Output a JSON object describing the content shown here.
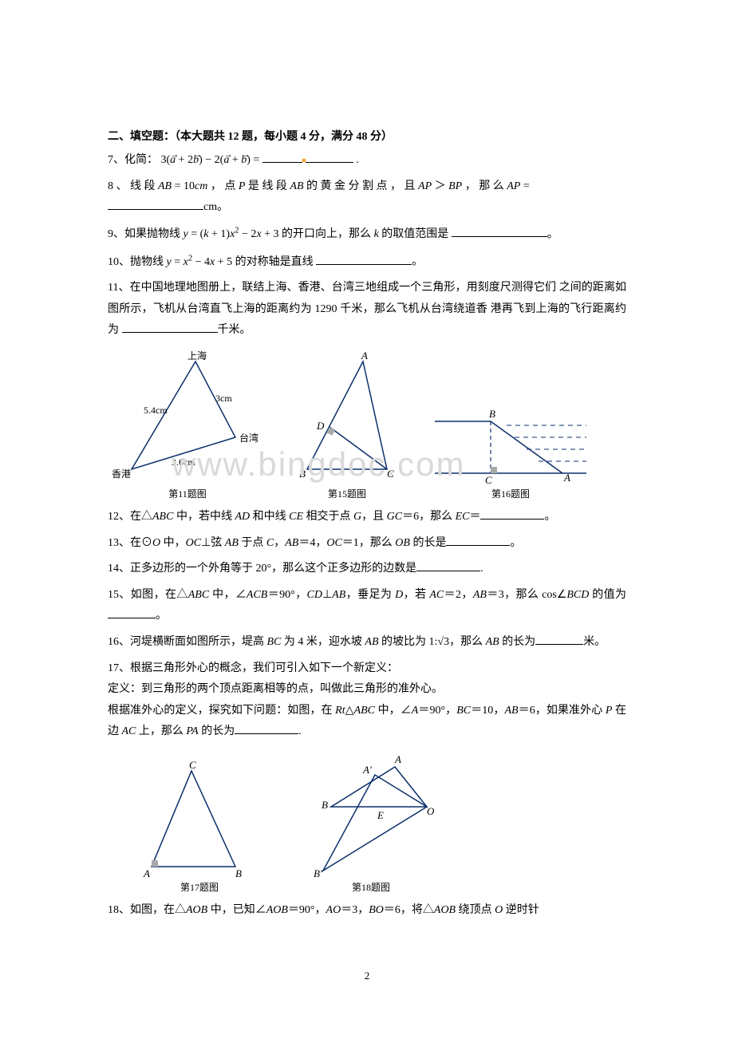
{
  "section_header": "二、填空题：（本大题共 12 题，每小题 4 分，满分 48 分）",
  "q7": {
    "prefix": "7、化简：",
    "formula_html": "3(<span class='vec'>a</span> + 2<span class='vec'>b</span>) − 2(<span class='vec'>a</span> + <span class='vec'>b</span>) = ",
    "suffix": "."
  },
  "q8": {
    "text": "8 、 线 段 <span class='italic'>AB</span> = 10<span class='italic'>cm</span> ， 点 <span class='italic'>P</span> 是 线 段 <span class='italic'>AB</span> 的 黄 金 分 割 点 ， 且 <span class='italic'>AP</span> ＞ <span class='italic'>BP</span> ， 那 么 <span class='italic'>AP</span> =",
    "unit": "cm。"
  },
  "q9": {
    "text": "9、如果抛物线 <span class='italic'>y</span> = (<span class='italic'>k</span> + 1)<span class='italic'>x</span><sup>2</sup> − 2<span class='italic'>x</span> + 3 的开口向上，那么 <span class='italic'>k</span> 的取值范围是",
    "suffix": "。"
  },
  "q10": {
    "text": "10、抛物线 <span class='italic'>y</span> = <span class='italic'>x</span><sup>2</sup> − 4<span class='italic'>x</span> + 5 的对称轴是直线",
    "suffix": "。"
  },
  "q11": {
    "line1": "11、在中国地理地图册上，联结上海、香港、台湾三地组成一个三角形，用刻度尺测得它们",
    "line2": "之间的距离如图所示，飞机从台湾直飞上海的距离约为 1290 千米，那么飞机从台湾绕道香",
    "line3": "港再飞到上海的飞行距离约为",
    "unit": "千米。"
  },
  "q12": "12、在△<span class='italic'>ABC</span> 中，若中线 <span class='italic'>AD</span> 和中线 <span class='italic'>CE</span> 相交于点 <span class='italic'>G</span>，且 <span class='italic'>GC</span>＝6，那么 <span class='italic'>EC</span>＝",
  "q13": "13、在⊙<span class='italic'>O</span> 中，<span class='italic'>OC</span>⊥弦 <span class='italic'>AB</span> 于点 <span class='italic'>C</span>，<span class='italic'>AB</span>＝4，<span class='italic'>OC</span>＝1，那么 <span class='italic'>OB</span> 的长是",
  "q14": "14、正多边形的一个外角等于 20°，那么这个正多边形的边数是",
  "q15": "15、如图，在△<span class='italic'>ABC</span> 中，∠<span class='italic'>ACB</span>＝90°，<span class='italic'>CD</span>⊥<span class='italic'>AB</span>，垂足为 <span class='italic'>D</span>，若 <span class='italic'>AC</span>＝2，<span class='italic'>AB</span>＝3，那么 cos∠<span class='italic'>BCD</span> 的值为",
  "q16": "16、河堤横断面如图所示，堤高 <span class='italic'>BC</span> 为 4 米，迎水坡 <span class='italic'>AB</span> 的坡比为 1:√3，那么 <span class='italic'>AB</span> 的长为",
  "q16_unit": "米。",
  "q17": {
    "a": "17、根据三角形外心的概念，我们可引入如下一个新定义：",
    "b": "定义：到三角形的两个顶点距离相等的点，叫做此三角形的准外心。",
    "c": "根据准外心的定义，探究如下问题：如图，在 <span class='italic'>Rt</span>△<span class='italic'>ABC</span> 中，∠<span class='italic'>A</span>＝90°，<span class='italic'>BC</span>＝10，<span class='italic'>AB</span>＝6，如果准外心 <span class='italic'>P</span> 在边 <span class='italic'>AC</span> 上，那么 <span class='italic'>PA</span> 的长为"
  },
  "q18": "18、如图，在△<span class='italic'>AOB</span> 中，已知∠<span class='italic'>AOB</span>＝90°，<span class='italic'>AO</span>＝3，<span class='italic'>BO</span>＝6，将△<span class='italic'>AOB</span> 绕顶点 <span class='italic'>O</span> 逆时针",
  "figs": {
    "f11": {
      "cap": "第11题图",
      "labels": {
        "sh": "上海",
        "tw": "台湾",
        "hk": "香港",
        "d1": "5.4cm",
        "d2": "3cm",
        "d3": "3.6cm"
      },
      "stroke": "#0b2f6b"
    },
    "f15": {
      "cap": "第15题图",
      "labels": {
        "A": "A",
        "B": "B",
        "C": "C",
        "D": "D"
      },
      "stroke": "#0b2f6b"
    },
    "f16": {
      "cap": "第16题图",
      "labels": {
        "A": "A",
        "B": "B",
        "C": "C"
      },
      "stroke": "#0b2f6b"
    },
    "f17": {
      "cap": "第17题图",
      "labels": {
        "A": "A",
        "B": "B",
        "C": "C"
      },
      "stroke": "#0b2f6b"
    },
    "f18": {
      "cap": "第18题图",
      "labels": {
        "A": "A",
        "Ap": "A'",
        "B": "B",
        "Bp": "B'",
        "E": "E",
        "O": "O"
      },
      "stroke": "#0b2f6b"
    }
  },
  "watermark": "www.bingdoc.com",
  "page_number": "2",
  "colors": {
    "text": "#000000",
    "figure_stroke": "#0b2f6b",
    "watermark": "#d9d9d9",
    "accent_dot": "#f6a623"
  }
}
